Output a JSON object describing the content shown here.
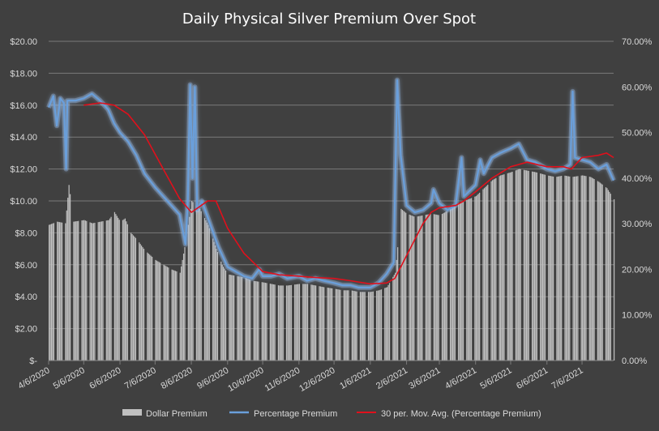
{
  "chart_data": {
    "type": "bar-line-combo",
    "title": "Daily Physical Silver Premium Over Spot",
    "y_left": {
      "ticks": [
        "$-",
        "$2.00",
        "$4.00",
        "$6.00",
        "$8.00",
        "$10.00",
        "$12.00",
        "$14.00",
        "$16.00",
        "$18.00",
        "$20.00"
      ],
      "range": [
        0,
        20
      ]
    },
    "y_right": {
      "ticks": [
        "0.00%",
        "10.00%",
        "20.00%",
        "30.00%",
        "40.00%",
        "50.00%",
        "60.00%",
        "70.00%"
      ],
      "range": [
        0,
        70
      ]
    },
    "x_ticks": [
      "4/6/2020",
      "5/6/2020",
      "6/6/2020",
      "7/6/2020",
      "8/6/2020",
      "9/6/2020",
      "10/6/2020",
      "11/6/2020",
      "12/6/2020",
      "1/6/2021",
      "2/6/2021",
      "3/6/2021",
      "4/6/2021",
      "5/6/2021",
      "6/6/2021",
      "7/6/2021"
    ],
    "x_range": [
      "2020-04-06",
      "2021-08-02"
    ],
    "grid": true,
    "legend_position": "bottom",
    "colors": {
      "bar": "#c0c0c0",
      "line": "#6a9fdb",
      "line_glow": "#9ec4f0",
      "mavg": "#e0101c",
      "background": "#404040",
      "grid": "#7a7a7a",
      "text": "#d9d9d9"
    },
    "series": [
      {
        "name": "Dollar Premium",
        "kind": "bar",
        "axis": "left",
        "points": [
          [
            "2020-04-06",
            8.5
          ],
          [
            "2020-04-13",
            8.7
          ],
          [
            "2020-04-20",
            8.6
          ],
          [
            "2020-04-23",
            11.0
          ],
          [
            "2020-04-27",
            8.7
          ],
          [
            "2020-05-06",
            8.8
          ],
          [
            "2020-05-13",
            8.6
          ],
          [
            "2020-05-20",
            8.7
          ],
          [
            "2020-05-27",
            8.8
          ],
          [
            "2020-06-01",
            9.3
          ],
          [
            "2020-06-06",
            8.7
          ],
          [
            "2020-06-10",
            8.9
          ],
          [
            "2020-06-15",
            8.0
          ],
          [
            "2020-06-20",
            7.6
          ],
          [
            "2020-06-27",
            6.9
          ],
          [
            "2020-07-06",
            6.3
          ],
          [
            "2020-07-13",
            6.0
          ],
          [
            "2020-07-20",
            5.7
          ],
          [
            "2020-07-27",
            5.5
          ],
          [
            "2020-08-01",
            7.5
          ],
          [
            "2020-08-06",
            10.0
          ],
          [
            "2020-08-13",
            9.5
          ],
          [
            "2020-08-20",
            8.5
          ],
          [
            "2020-08-27",
            7.0
          ],
          [
            "2020-09-01",
            6.0
          ],
          [
            "2020-09-06",
            5.4
          ],
          [
            "2020-09-13",
            5.3
          ],
          [
            "2020-09-20",
            5.2
          ],
          [
            "2020-09-27",
            5.0
          ],
          [
            "2020-10-06",
            4.9
          ],
          [
            "2020-10-13",
            4.8
          ],
          [
            "2020-10-20",
            4.7
          ],
          [
            "2020-10-27",
            4.7
          ],
          [
            "2020-11-06",
            4.8
          ],
          [
            "2020-11-13",
            4.8
          ],
          [
            "2020-11-20",
            4.7
          ],
          [
            "2020-11-27",
            4.6
          ],
          [
            "2020-12-06",
            4.5
          ],
          [
            "2020-12-13",
            4.4
          ],
          [
            "2020-12-20",
            4.4
          ],
          [
            "2020-12-27",
            4.3
          ],
          [
            "2021-01-06",
            4.3
          ],
          [
            "2021-01-13",
            4.4
          ],
          [
            "2021-01-20",
            4.6
          ],
          [
            "2021-01-27",
            5.5
          ],
          [
            "2021-02-01",
            9.5
          ],
          [
            "2021-02-06",
            9.2
          ],
          [
            "2021-02-13",
            9.0
          ],
          [
            "2021-02-20",
            9.1
          ],
          [
            "2021-02-27",
            9.2
          ],
          [
            "2021-03-06",
            9.1
          ],
          [
            "2021-03-13",
            9.4
          ],
          [
            "2021-03-20",
            9.8
          ],
          [
            "2021-03-27",
            10.0
          ],
          [
            "2021-04-06",
            10.3
          ],
          [
            "2021-04-13",
            10.8
          ],
          [
            "2021-04-20",
            11.3
          ],
          [
            "2021-04-27",
            11.6
          ],
          [
            "2021-05-06",
            11.8
          ],
          [
            "2021-05-13",
            12.0
          ],
          [
            "2021-05-20",
            11.9
          ],
          [
            "2021-05-27",
            11.8
          ],
          [
            "2021-06-06",
            11.6
          ],
          [
            "2021-06-13",
            11.5
          ],
          [
            "2021-06-20",
            11.6
          ],
          [
            "2021-06-27",
            11.5
          ],
          [
            "2021-07-06",
            11.6
          ],
          [
            "2021-07-13",
            11.5
          ],
          [
            "2021-07-20",
            11.2
          ],
          [
            "2021-07-27",
            10.8
          ],
          [
            "2021-08-02",
            10.1
          ]
        ]
      },
      {
        "name": "Percentage Premium",
        "kind": "line",
        "axis": "right",
        "points": [
          [
            "2020-04-06",
            55.5
          ],
          [
            "2020-04-10",
            58.0
          ],
          [
            "2020-04-13",
            51.5
          ],
          [
            "2020-04-16",
            57.5
          ],
          [
            "2020-04-19",
            56.5
          ],
          [
            "2020-04-21",
            42.0
          ],
          [
            "2020-04-22",
            57.0
          ],
          [
            "2020-04-29",
            57.0
          ],
          [
            "2020-05-06",
            57.5
          ],
          [
            "2020-05-13",
            58.5
          ],
          [
            "2020-05-20",
            57.0
          ],
          [
            "2020-05-27",
            55.0
          ],
          [
            "2020-06-01",
            52.0
          ],
          [
            "2020-06-06",
            50.0
          ],
          [
            "2020-06-13",
            48.0
          ],
          [
            "2020-06-20",
            45.0
          ],
          [
            "2020-06-27",
            41.0
          ],
          [
            "2020-07-06",
            38.0
          ],
          [
            "2020-07-13",
            36.0
          ],
          [
            "2020-07-20",
            34.0
          ],
          [
            "2020-07-27",
            32.0
          ],
          [
            "2020-08-01",
            25.5
          ],
          [
            "2020-08-03",
            35.0
          ],
          [
            "2020-08-05",
            60.5
          ],
          [
            "2020-08-07",
            40.0
          ],
          [
            "2020-08-09",
            60.0
          ],
          [
            "2020-08-11",
            33.0
          ],
          [
            "2020-08-15",
            35.0
          ],
          [
            "2020-08-22",
            30.0
          ],
          [
            "2020-08-29",
            25.0
          ],
          [
            "2020-09-06",
            20.5
          ],
          [
            "2020-09-13",
            19.5
          ],
          [
            "2020-09-20",
            18.5
          ],
          [
            "2020-09-27",
            18.0
          ],
          [
            "2020-10-03",
            20.0
          ],
          [
            "2020-10-06",
            18.5
          ],
          [
            "2020-10-13",
            18.5
          ],
          [
            "2020-10-20",
            19.0
          ],
          [
            "2020-10-27",
            18.0
          ],
          [
            "2020-11-06",
            18.5
          ],
          [
            "2020-11-13",
            17.5
          ],
          [
            "2020-11-20",
            18.0
          ],
          [
            "2020-11-27",
            17.5
          ],
          [
            "2020-12-06",
            17.0
          ],
          [
            "2020-12-13",
            16.5
          ],
          [
            "2020-12-20",
            16.5
          ],
          [
            "2020-12-27",
            16.0
          ],
          [
            "2021-01-06",
            16.0
          ],
          [
            "2021-01-13",
            17.0
          ],
          [
            "2021-01-20",
            19.0
          ],
          [
            "2021-01-26",
            21.5
          ],
          [
            "2021-01-29",
            61.5
          ],
          [
            "2021-02-01",
            45.0
          ],
          [
            "2021-02-06",
            34.0
          ],
          [
            "2021-02-13",
            32.5
          ],
          [
            "2021-02-20",
            33.0
          ],
          [
            "2021-02-27",
            34.5
          ],
          [
            "2021-03-01",
            37.5
          ],
          [
            "2021-03-06",
            34.5
          ],
          [
            "2021-03-13",
            33.0
          ],
          [
            "2021-03-20",
            34.0
          ],
          [
            "2021-03-25",
            44.5
          ],
          [
            "2021-03-27",
            36.0
          ],
          [
            "2021-04-06",
            38.5
          ],
          [
            "2021-04-10",
            44.0
          ],
          [
            "2021-04-13",
            41.0
          ],
          [
            "2021-04-20",
            44.5
          ],
          [
            "2021-04-27",
            45.5
          ],
          [
            "2021-05-06",
            46.5
          ],
          [
            "2021-05-13",
            47.5
          ],
          [
            "2021-05-20",
            44.0
          ],
          [
            "2021-05-27",
            43.5
          ],
          [
            "2021-06-06",
            42.0
          ],
          [
            "2021-06-13",
            41.5
          ],
          [
            "2021-06-20",
            42.0
          ],
          [
            "2021-06-26",
            43.0
          ],
          [
            "2021-06-28",
            59.0
          ],
          [
            "2021-06-30",
            44.5
          ],
          [
            "2021-07-06",
            44.0
          ],
          [
            "2021-07-13",
            43.5
          ],
          [
            "2021-07-20",
            42.0
          ],
          [
            "2021-07-27",
            43.0
          ],
          [
            "2021-08-02",
            39.5
          ]
        ]
      },
      {
        "name": "30 per. Mov. Avg. (Percentage Premium)",
        "kind": "line",
        "axis": "right",
        "points": [
          [
            "2020-05-06",
            56.0
          ],
          [
            "2020-05-20",
            56.5
          ],
          [
            "2020-06-01",
            56.0
          ],
          [
            "2020-06-13",
            54.0
          ],
          [
            "2020-06-27",
            49.5
          ],
          [
            "2020-07-13",
            42.0
          ],
          [
            "2020-07-27",
            35.5
          ],
          [
            "2020-08-06",
            32.5
          ],
          [
            "2020-08-20",
            35.0
          ],
          [
            "2020-08-27",
            35.0
          ],
          [
            "2020-09-06",
            29.0
          ],
          [
            "2020-09-20",
            23.5
          ],
          [
            "2020-10-06",
            19.5
          ],
          [
            "2020-10-20",
            18.8
          ],
          [
            "2020-11-06",
            18.5
          ],
          [
            "2020-11-20",
            18.2
          ],
          [
            "2020-12-06",
            18.0
          ],
          [
            "2020-12-20",
            17.5
          ],
          [
            "2021-01-06",
            16.8
          ],
          [
            "2021-01-20",
            17.0
          ],
          [
            "2021-01-27",
            18.0
          ],
          [
            "2021-02-06",
            23.0
          ],
          [
            "2021-02-20",
            30.0
          ],
          [
            "2021-02-27",
            32.5
          ],
          [
            "2021-03-06",
            33.5
          ],
          [
            "2021-03-20",
            34.0
          ],
          [
            "2021-03-27",
            35.0
          ],
          [
            "2021-04-06",
            37.0
          ],
          [
            "2021-04-20",
            40.0
          ],
          [
            "2021-05-06",
            42.5
          ],
          [
            "2021-05-20",
            43.5
          ],
          [
            "2021-06-06",
            42.5
          ],
          [
            "2021-06-20",
            42.5
          ],
          [
            "2021-06-27",
            42.0
          ],
          [
            "2021-07-06",
            44.5
          ],
          [
            "2021-07-20",
            45.0
          ],
          [
            "2021-07-27",
            45.5
          ],
          [
            "2021-08-02",
            44.5
          ]
        ]
      }
    ]
  }
}
